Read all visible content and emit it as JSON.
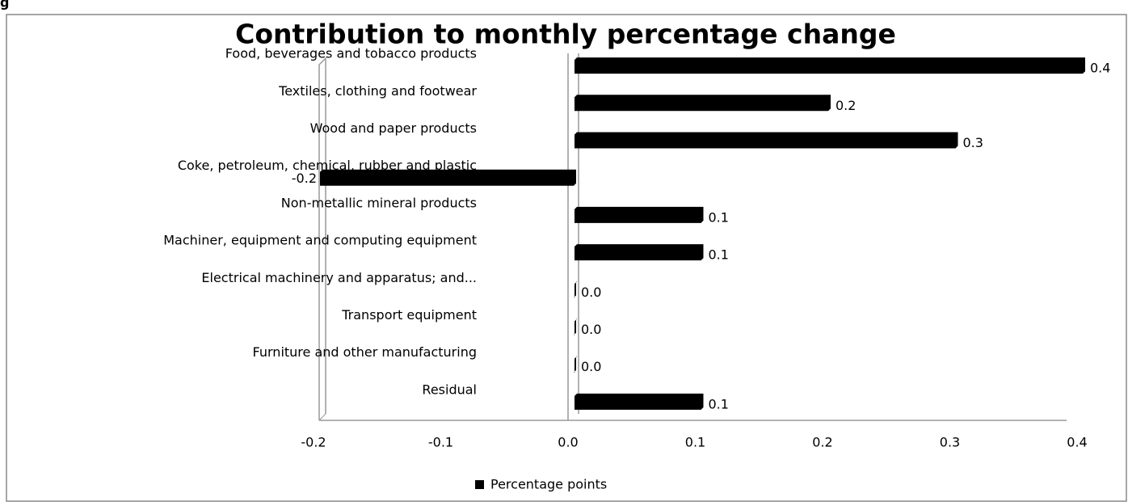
{
  "chart_data": {
    "type": "bar",
    "orientation": "horizontal",
    "caption": "g",
    "title": "Contribution to monthly percentage change",
    "categories": [
      "Food, beverages and tobacco products",
      "Textiles, clothing and footwear",
      "Wood and paper products",
      "Coke, petroleum, chemical, rubber and plastic",
      "Non-metallic mineral products",
      "Machiner, equipment and computing equipment",
      "Electrical machinery and apparatus; and...",
      "Transport equipment",
      "Furniture and other manufacturing",
      "Residual"
    ],
    "series": [
      {
        "name": "Percentage points",
        "color": "#000000",
        "values": [
          0.4,
          0.2,
          0.3,
          -0.2,
          0.1,
          0.1,
          0.0,
          0.0,
          0.0,
          0.1
        ],
        "value_labels": [
          "0.4",
          "0.2",
          "0.3",
          "-0.2",
          "0.1",
          "0.1",
          "0.0",
          "0.0",
          "0.0",
          "0.1"
        ]
      }
    ],
    "xlim": [
      -0.2,
      0.4
    ],
    "xticks": [
      -0.2,
      -0.1,
      {
        "value": 0,
        "label": "0.0"
      },
      0.1,
      0.2,
      0.3,
      0.4
    ],
    "legend": "bottom"
  }
}
